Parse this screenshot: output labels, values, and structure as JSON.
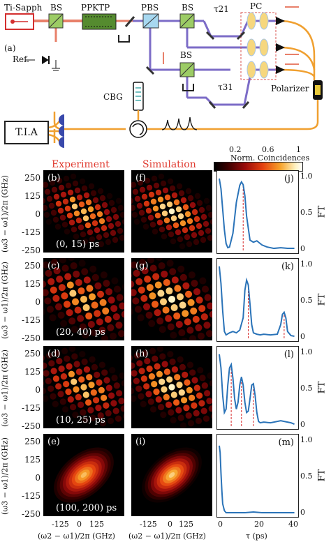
{
  "setup": {
    "label_a": "(a)",
    "laser": "Ti-Sapph",
    "bs1": "BS",
    "ppktp": "PPKTP",
    "pbs": "PBS",
    "bs2": "BS",
    "bs3": "BS",
    "tau21": "τ21",
    "tau31": "τ31",
    "pc": "PC",
    "ref": "Ref.",
    "polarizer": "Polarizer",
    "cbg": "CBG",
    "tia": "T.I.A"
  },
  "colorbar": {
    "title": "Norm. Coincidences",
    "ticks": [
      "0.2",
      "0.6",
      "1"
    ]
  },
  "columns": {
    "experiment": "Experiment",
    "simulation": "Simulation"
  },
  "rows": [
    {
      "exp": "(b)",
      "sim": "(f)",
      "ft": "(j)",
      "range": "(0, 15) ps"
    },
    {
      "exp": "(c)",
      "sim": "(g)",
      "ft": "(k)",
      "range": "(20, 40) ps"
    },
    {
      "exp": "(d)",
      "sim": "(h)",
      "ft": "(l)",
      "range": "(10, 25) ps"
    },
    {
      "exp": "(e)",
      "sim": "(i)",
      "ft": "(m)",
      "range": "(100, 200) ps"
    }
  ],
  "axes": {
    "y_label": "(ω3 − ω1)/2π (GHz)",
    "x_label": "(ω2 − ω1)/2π (GHz)",
    "y_ticks": [
      "250",
      "125",
      "0",
      "-125",
      "-250"
    ],
    "x_ticks": [
      "-125",
      "0",
      "125"
    ],
    "ft_label": "FT",
    "ft_y_ticks": [
      "1.0",
      "0.5",
      "0"
    ],
    "tau_label": "τ (ps)",
    "tau_ticks": [
      "0",
      "20",
      "40"
    ]
  },
  "chart_data": [
    {
      "type": "line",
      "title": "(j)",
      "xlabel": "τ (ps)",
      "ylabel": "FT",
      "xlim": [
        0,
        45
      ],
      "ylim": [
        0,
        1.1
      ],
      "x": [
        0,
        1,
        2,
        3,
        4,
        5,
        6,
        8,
        10,
        12,
        13,
        14,
        15,
        16,
        18,
        20,
        22,
        25,
        28,
        32,
        36,
        40,
        44
      ],
      "y": [
        1.05,
        0.9,
        0.6,
        0.3,
        0.1,
        0.04,
        0.05,
        0.25,
        0.7,
        0.95,
        1.0,
        0.96,
        0.8,
        0.5,
        0.15,
        0.12,
        0.14,
        0.08,
        0.05,
        0.03,
        0.04,
        0.03,
        0.03
      ],
      "marker_lines": [
        14
      ]
    },
    {
      "type": "line",
      "title": "(k)",
      "xlabel": "τ (ps)",
      "ylabel": "FT",
      "xlim": [
        0,
        45
      ],
      "ylim": [
        0,
        1.1
      ],
      "x": [
        0,
        1,
        2,
        3,
        4,
        6,
        8,
        10,
        12,
        14,
        15,
        16,
        17,
        18,
        19,
        20,
        22,
        24,
        26,
        30,
        34,
        36,
        37,
        38,
        39,
        40,
        42,
        44
      ],
      "y": [
        1.05,
        0.8,
        0.4,
        0.1,
        0.05,
        0.08,
        0.1,
        0.08,
        0.12,
        0.3,
        0.7,
        0.85,
        0.78,
        0.5,
        0.2,
        0.08,
        0.06,
        0.05,
        0.06,
        0.05,
        0.06,
        0.2,
        0.35,
        0.38,
        0.3,
        0.1,
        0.04,
        0.03
      ],
      "marker_lines": [
        17,
        38
      ]
    },
    {
      "type": "line",
      "title": "(l)",
      "xlabel": "τ (ps)",
      "ylabel": "FT",
      "xlim": [
        0,
        45
      ],
      "ylim": [
        0,
        1.1
      ],
      "x": [
        0,
        1,
        2,
        3,
        4,
        5,
        6,
        7,
        8,
        9,
        10,
        11,
        12,
        13,
        14,
        15,
        16,
        17,
        18,
        19,
        20,
        21,
        22,
        23,
        24,
        26,
        30,
        36,
        42,
        44
      ],
      "y": [
        1.05,
        0.85,
        0.45,
        0.2,
        0.25,
        0.6,
        0.85,
        0.9,
        0.7,
        0.4,
        0.25,
        0.35,
        0.6,
        0.72,
        0.6,
        0.35,
        0.2,
        0.22,
        0.4,
        0.6,
        0.62,
        0.45,
        0.2,
        0.07,
        0.05,
        0.06,
        0.05,
        0.08,
        0.05,
        0.03
      ],
      "marker_lines": [
        7,
        13,
        20
      ]
    },
    {
      "type": "line",
      "title": "(m)",
      "xlabel": "τ (ps)",
      "ylabel": "FT",
      "xlim": [
        0,
        45
      ],
      "ylim": [
        0,
        1.1
      ],
      "x": [
        0,
        0.5,
        1,
        1.5,
        2,
        3,
        4,
        6,
        10,
        15,
        20,
        25,
        30,
        35,
        40,
        44
      ],
      "y": [
        1.0,
        0.9,
        0.6,
        0.35,
        0.15,
        0.05,
        0.02,
        0.02,
        0.02,
        0.02,
        0.03,
        0.02,
        0.02,
        0.02,
        0.02,
        0.02
      ],
      "marker_lines": []
    }
  ]
}
